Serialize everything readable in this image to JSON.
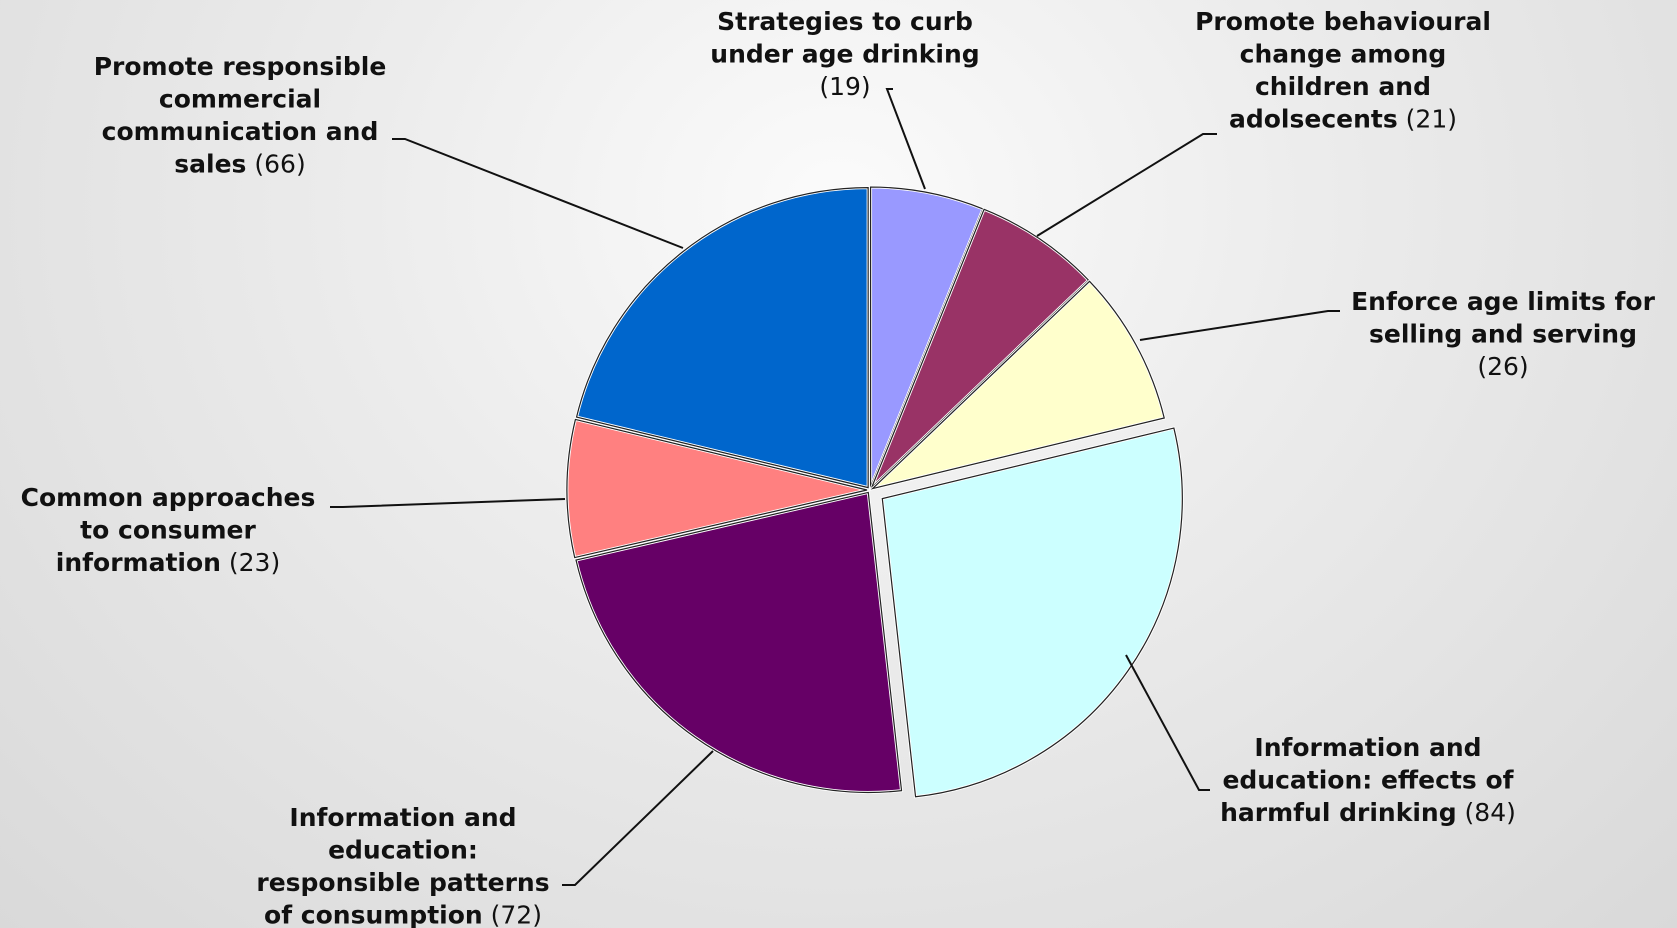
{
  "chart_data": {
    "type": "pie",
    "title": "",
    "slices": [
      {
        "label": "Strategies to curb under age drinking",
        "value": 19,
        "value_text": "(19)",
        "color": "#9999ff"
      },
      {
        "label": "Promote behavioural change among children and adolsecents",
        "value": 21,
        "value_text": "(21)",
        "color": "#993366"
      },
      {
        "label": "Enforce age limits for selling and serving",
        "value": 26,
        "value_text": "(26)",
        "color": "#ffffcc"
      },
      {
        "label": "Information and education: effects of harmful drinking",
        "value": 84,
        "value_text": "(84)",
        "color": "#ccffff"
      },
      {
        "label": "Information and education: responsible patterns of consumption",
        "value": 72,
        "value_text": "(72)",
        "color": "#660066"
      },
      {
        "label": "Common approaches to consumer information",
        "value": 23,
        "value_text": "(23)",
        "color": "#ff8080"
      },
      {
        "label": "Promote responsible commercial communication and sales",
        "value": 66,
        "value_text": "(66)",
        "color": "#0066cc"
      }
    ],
    "start_angle_deg": 0,
    "direction": "clockwise",
    "legend": "none"
  }
}
